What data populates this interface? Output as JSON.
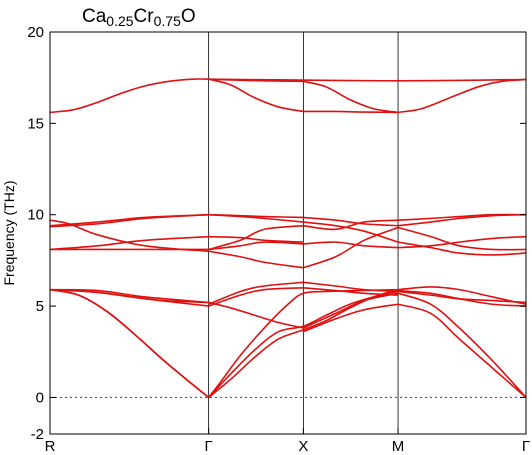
{
  "chart_data": {
    "type": "line",
    "title": {
      "parts": [
        {
          "text": "Ca",
          "sub": false
        },
        {
          "text": "0.25",
          "sub": true
        },
        {
          "text": "Cr",
          "sub": false
        },
        {
          "text": "0.75",
          "sub": true
        },
        {
          "text": "O",
          "sub": false
        }
      ]
    },
    "ylabel": "Frequency (THz)",
    "xlabel": "",
    "ylim": [
      -2,
      20
    ],
    "yticks": [
      -2,
      0,
      5,
      10,
      15,
      20
    ],
    "xlim": [
      0,
      1
    ],
    "xticks": [
      {
        "pos": 0.0,
        "label": "R"
      },
      {
        "pos": 0.3333,
        "label": "Γ"
      },
      {
        "pos": 0.5323,
        "label": "X"
      },
      {
        "pos": 0.7312,
        "label": "M"
      },
      {
        "pos": 1.0,
        "label": "Γ"
      }
    ],
    "zero_line": {
      "y": 0,
      "color": "#4a4acb",
      "style": "dotted"
    },
    "line_color": "#e01010",
    "series": [
      {
        "x": [
          0,
          0.06,
          0.12,
          0.18,
          0.24,
          0.3,
          0.3333
        ],
        "y": [
          5.9,
          5.6,
          4.7,
          3.4,
          2.0,
          0.7,
          0
        ]
      },
      {
        "x": [
          0,
          0.06,
          0.12,
          0.18,
          0.24,
          0.3,
          0.3333
        ],
        "y": [
          5.9,
          5.6,
          4.7,
          3.4,
          2.0,
          0.7,
          0
        ]
      },
      {
        "x": [
          0,
          0.08,
          0.16,
          0.24,
          0.3333
        ],
        "y": [
          5.9,
          5.8,
          5.55,
          5.3,
          5.2
        ]
      },
      {
        "x": [
          0,
          0.1,
          0.2,
          0.3333
        ],
        "y": [
          5.9,
          5.75,
          5.4,
          5.0
        ]
      },
      {
        "x": [
          0,
          0.1,
          0.2,
          0.3333
        ],
        "y": [
          5.9,
          5.85,
          5.5,
          5.2
        ]
      },
      {
        "x": [
          0,
          0.1,
          0.2,
          0.3333
        ],
        "y": [
          8.1,
          8.1,
          8.1,
          8.1
        ]
      },
      {
        "x": [
          0,
          0.1,
          0.2,
          0.3333
        ],
        "y": [
          8.1,
          8.3,
          8.6,
          8.8
        ]
      },
      {
        "x": [
          0,
          0.04,
          0.1,
          0.2,
          0.3333
        ],
        "y": [
          9.7,
          9.5,
          8.9,
          8.3,
          8.0
        ]
      },
      {
        "x": [
          0,
          0.1,
          0.2,
          0.3333
        ],
        "y": [
          9.4,
          9.6,
          9.85,
          10.0
        ]
      },
      {
        "x": [
          0,
          0.1,
          0.2,
          0.3333
        ],
        "y": [
          9.35,
          9.5,
          9.8,
          10.0
        ]
      },
      {
        "x": [
          0,
          0.05,
          0.1,
          0.15,
          0.2,
          0.25,
          0.3,
          0.3333
        ],
        "y": [
          15.6,
          15.75,
          16.15,
          16.65,
          17.05,
          17.3,
          17.42,
          17.42
        ]
      },
      {
        "x": [
          0.3333,
          0.38,
          0.43,
          0.48,
          0.5323,
          0.58,
          0.63,
          0.68,
          0.7312
        ],
        "y": [
          0,
          1.3,
          2.6,
          3.6,
          3.9,
          4.5,
          5.1,
          5.5,
          5.8
        ]
      },
      {
        "x": [
          0.3333,
          0.38,
          0.43,
          0.48,
          0.5323,
          0.58,
          0.63,
          0.68,
          0.7312
        ],
        "y": [
          0,
          1.0,
          2.2,
          3.2,
          3.7,
          4.2,
          4.9,
          5.5,
          5.9
        ]
      },
      {
        "x": [
          0.3333,
          0.36,
          0.4,
          0.45,
          0.5,
          0.5323,
          0.58,
          0.65,
          0.7312
        ],
        "y": [
          0,
          0.9,
          2.3,
          3.8,
          5.1,
          5.7,
          5.8,
          5.85,
          5.9
        ]
      },
      {
        "x": [
          0.3333,
          0.38,
          0.43,
          0.48,
          0.5323
        ],
        "y": [
          5.2,
          4.9,
          4.5,
          4.1,
          3.8
        ]
      },
      {
        "x": [
          0.3333,
          0.4,
          0.45,
          0.5323
        ],
        "y": [
          5.0,
          5.6,
          5.9,
          6.0
        ]
      },
      {
        "x": [
          0.3333,
          0.4,
          0.45,
          0.5323
        ],
        "y": [
          5.1,
          5.8,
          6.1,
          6.3
        ]
      },
      {
        "x": [
          0.5323,
          0.6,
          0.66,
          0.7312
        ],
        "y": [
          3.8,
          4.6,
          5.3,
          5.7
        ]
      },
      {
        "x": [
          0.5323,
          0.6,
          0.66,
          0.7312
        ],
        "y": [
          6.0,
          5.85,
          5.7,
          5.6
        ]
      },
      {
        "x": [
          0.5323,
          0.6,
          0.66,
          0.7312
        ],
        "y": [
          6.3,
          6.1,
          5.9,
          5.8
        ]
      },
      {
        "x": [
          0.5323,
          0.6,
          0.66,
          0.7312
        ],
        "y": [
          3.6,
          4.3,
          4.8,
          5.1
        ]
      },
      {
        "x": [
          0.7312,
          0.8,
          0.86,
          0.93,
          1.0
        ],
        "y": [
          5.1,
          4.6,
          3.2,
          1.6,
          0
        ]
      },
      {
        "x": [
          0.7312,
          0.8,
          0.86,
          0.93,
          1.0
        ],
        "y": [
          5.7,
          5.1,
          3.8,
          2.0,
          0
        ]
      },
      {
        "x": [
          0.7312,
          0.8,
          0.86,
          0.93,
          1.0
        ],
        "y": [
          5.8,
          5.6,
          5.4,
          5.3,
          5.2
        ]
      },
      {
        "x": [
          0.7312,
          0.8,
          0.86,
          0.93,
          1.0
        ],
        "y": [
          5.9,
          6.05,
          5.9,
          5.5,
          5.1
        ]
      },
      {
        "x": [
          0.7312,
          0.8,
          0.86,
          0.93,
          1.0
        ],
        "y": [
          5.85,
          5.7,
          5.4,
          5.1,
          5.0
        ]
      },
      {
        "x": [
          0.3333,
          0.4,
          0.45,
          0.5323
        ],
        "y": [
          8.0,
          7.7,
          7.4,
          7.1
        ]
      },
      {
        "x": [
          0.3333,
          0.4,
          0.45,
          0.5323
        ],
        "y": [
          8.1,
          8.3,
          8.5,
          8.4
        ]
      },
      {
        "x": [
          0.3333,
          0.4,
          0.45,
          0.5323
        ],
        "y": [
          8.8,
          8.75,
          8.6,
          8.5
        ]
      },
      {
        "x": [
          0.3333,
          0.4,
          0.45,
          0.5323
        ],
        "y": [
          8.1,
          8.6,
          9.2,
          9.4
        ]
      },
      {
        "x": [
          0.3333,
          0.4,
          0.45,
          0.5323
        ],
        "y": [
          10.0,
          9.9,
          9.8,
          9.6
        ]
      },
      {
        "x": [
          0.3333,
          0.4,
          0.45,
          0.5323
        ],
        "y": [
          10.0,
          9.95,
          9.9,
          9.85
        ]
      },
      {
        "x": [
          0.5323,
          0.6,
          0.66,
          0.7312
        ],
        "y": [
          7.1,
          7.7,
          8.6,
          9.3
        ]
      },
      {
        "x": [
          0.5323,
          0.6,
          0.66,
          0.7312
        ],
        "y": [
          8.4,
          8.5,
          8.3,
          8.2
        ]
      },
      {
        "x": [
          0.5323,
          0.6,
          0.66,
          0.7312
        ],
        "y": [
          9.4,
          9.2,
          9.6,
          9.7
        ]
      },
      {
        "x": [
          0.5323,
          0.6,
          0.66,
          0.7312
        ],
        "y": [
          9.6,
          9.4,
          9.1,
          8.5
        ]
      },
      {
        "x": [
          0.5323,
          0.6,
          0.66,
          0.7312
        ],
        "y": [
          9.85,
          9.7,
          9.5,
          9.4
        ]
      },
      {
        "x": [
          0.7312,
          0.8,
          0.86,
          0.93,
          1.0
        ],
        "y": [
          9.3,
          8.8,
          8.3,
          8.1,
          8.1
        ]
      },
      {
        "x": [
          0.7312,
          0.8,
          0.86,
          0.93,
          1.0
        ],
        "y": [
          8.2,
          8.3,
          8.5,
          8.7,
          8.8
        ]
      },
      {
        "x": [
          0.7312,
          0.8,
          0.86,
          0.93,
          1.0
        ],
        "y": [
          8.5,
          8.2,
          7.9,
          7.8,
          7.9
        ]
      },
      {
        "x": [
          0.7312,
          0.8,
          0.86,
          0.93,
          1.0
        ],
        "y": [
          9.7,
          9.8,
          9.9,
          10.0,
          10.0
        ]
      },
      {
        "x": [
          0.7312,
          0.8,
          0.86,
          0.93,
          1.0
        ],
        "y": [
          9.4,
          9.6,
          9.8,
          9.95,
          10.0
        ]
      },
      {
        "x": [
          0.3333,
          0.6,
          0.7312,
          0.85,
          1.0
        ],
        "y": [
          17.42,
          17.35,
          17.33,
          17.35,
          17.4
        ]
      },
      {
        "x": [
          0.3333,
          0.38,
          0.43,
          0.48,
          0.5323
        ],
        "y": [
          17.42,
          17.1,
          16.4,
          15.9,
          15.65
        ]
      },
      {
        "x": [
          0.3333,
          0.4,
          0.45,
          0.5323
        ],
        "y": [
          17.42,
          17.36,
          17.33,
          17.3
        ]
      },
      {
        "x": [
          0.5323,
          0.6,
          0.66,
          0.7312
        ],
        "y": [
          15.65,
          15.65,
          15.62,
          15.6
        ]
      },
      {
        "x": [
          0.5323,
          0.58,
          0.63,
          0.68,
          0.7312
        ],
        "y": [
          17.3,
          17.0,
          16.3,
          15.8,
          15.6
        ]
      },
      {
        "x": [
          0.7312,
          0.78,
          0.84,
          0.9,
          0.95,
          1.0
        ],
        "y": [
          15.6,
          15.8,
          16.4,
          17.0,
          17.3,
          17.4
        ]
      }
    ]
  }
}
